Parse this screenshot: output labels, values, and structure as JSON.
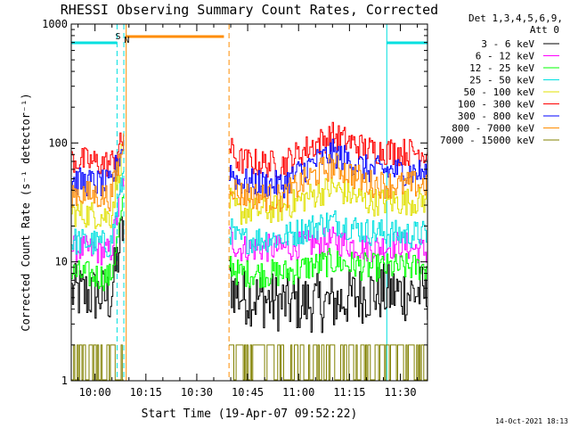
{
  "chart_data": {
    "type": "line",
    "title": "RHESSI Observing Summary Count Rates, Corrected",
    "xlabel": "Start Time (19-Apr-07 09:52:22)",
    "ylabel": "Corrected Count Rate (s⁻¹ detector⁻¹)",
    "x_ticks": [
      "10:00",
      "10:15",
      "10:30",
      "10:45",
      "11:00",
      "11:15",
      "11:30"
    ],
    "y_ticks": [
      "1",
      "10",
      "100",
      "1000"
    ],
    "x_range_min": [
      -7,
      98
    ],
    "ylim": [
      1,
      1000
    ],
    "yscale": "log",
    "grid": false,
    "legend_header": [
      "Det 1,3,4,5,6,9,",
      "Att 0"
    ],
    "legend_position": "top-right",
    "stamp": "14-Oct-2021 18:13",
    "flag_markers": [
      {
        "label": "S",
        "color": "#e07a10"
      },
      {
        "label": "N",
        "color": "#00d0e0"
      }
    ],
    "series": [
      {
        "name": "3 - 6 keV",
        "color": "#000000",
        "level": [
          5.5,
          4.5,
          4.5,
          5.5,
          5.5,
          5.5
        ]
      },
      {
        "name": "6 - 12 keV",
        "color": "#ff00ff",
        "level": [
          13,
          13,
          15,
          13,
          14,
          12
        ]
      },
      {
        "name": "12 - 25 keV",
        "color": "#00ff00",
        "level": [
          8,
          8,
          10,
          9,
          9,
          9
        ]
      },
      {
        "name": "25 - 50 keV",
        "color": "#00e0e0",
        "level": [
          15,
          16,
          22,
          18,
          17,
          17
        ]
      },
      {
        "name": "50 - 100 keV",
        "color": "#e0e000",
        "level": [
          26,
          28,
          42,
          32,
          32,
          33
        ]
      },
      {
        "name": "100 - 300 keV",
        "color": "#ff0000",
        "level": [
          72,
          65,
          115,
          88,
          84,
          84
        ]
      },
      {
        "name": "300 - 800 keV",
        "color": "#0000ff",
        "level": [
          48,
          44,
          82,
          60,
          58,
          56
        ]
      },
      {
        "name": "800 - 7000 keV",
        "color": "#ff8c00",
        "level": [
          38,
          34,
          65,
          46,
          44,
          45
        ]
      },
      {
        "name": "7000 - 15000 keV",
        "color": "#808000",
        "level": [
          1.5,
          1.5,
          1.6,
          1.5,
          1.5,
          1.5
        ]
      }
    ]
  }
}
